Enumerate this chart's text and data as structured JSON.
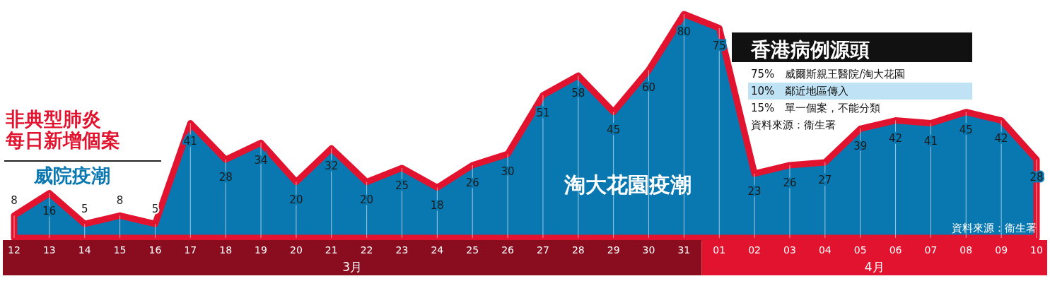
{
  "chart_data": {
    "type": "area",
    "title": "非典型肺炎每日新增個案",
    "categories": [
      "12",
      "13",
      "14",
      "15",
      "16",
      "17",
      "18",
      "19",
      "20",
      "21",
      "22",
      "23",
      "24",
      "25",
      "26",
      "27",
      "28",
      "29",
      "30",
      "31",
      "01",
      "02",
      "03",
      "04",
      "05",
      "06",
      "07",
      "08",
      "09",
      "10"
    ],
    "series": [
      {
        "color": "#0a78b0",
        "values": [
          8,
          16,
          5,
          8,
          5,
          41,
          28,
          34,
          20,
          32,
          20,
          25,
          18,
          26,
          30,
          51,
          58,
          45,
          60,
          80,
          75,
          23,
          26,
          27,
          39,
          42,
          41,
          45,
          42,
          28
        ]
      }
    ],
    "tick_labels": "x",
    "grid": "x",
    "data_labels": true,
    "annotations": [
      "威院疫潮",
      "淘大花園疫潮",
      "香港病例源頭",
      "75%　威爾斯親王醫院/淘大花園",
      "10%　鄰近地區傳入",
      "15%　單一個案，不能分類",
      "資料來源：衞生署",
      "資料來源：衞生署",
      "3月",
      "4月"
    ]
  }
}
